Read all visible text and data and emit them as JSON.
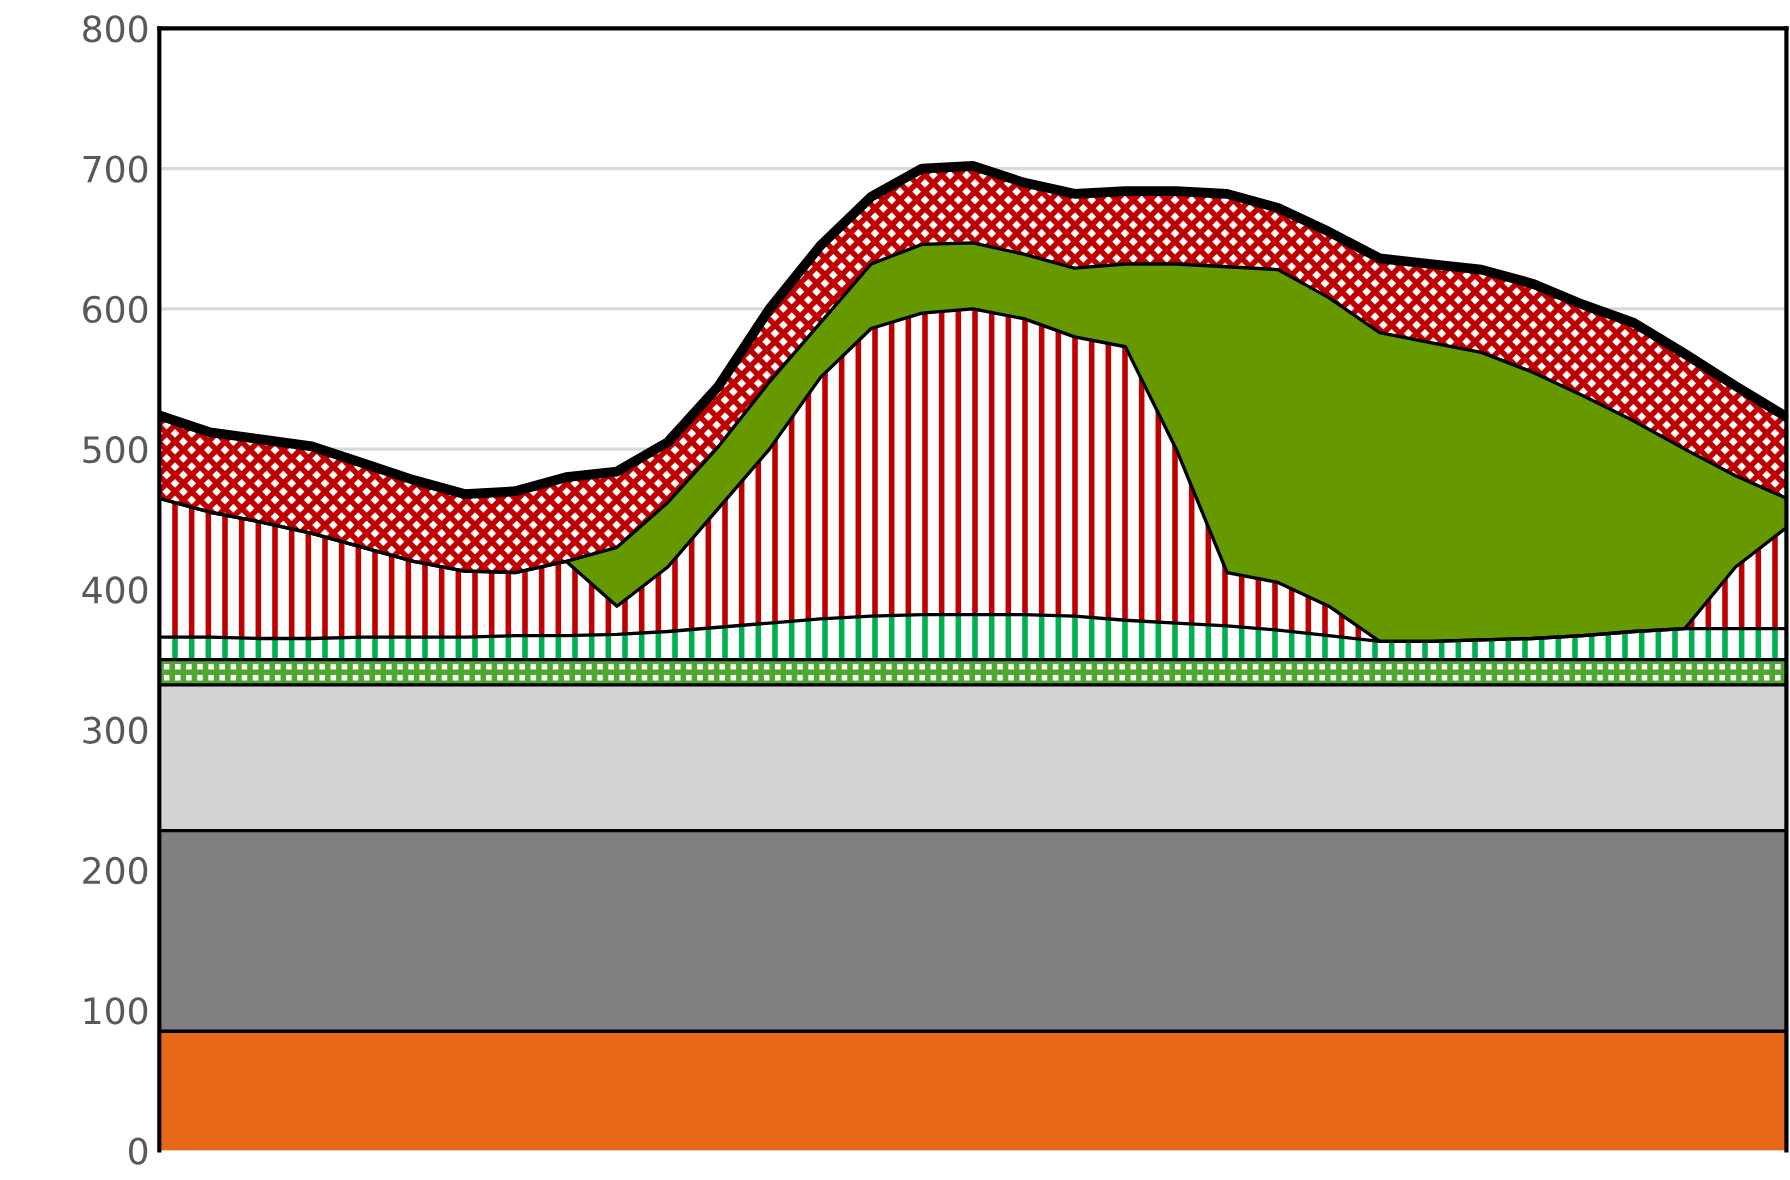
{
  "chart_data": {
    "type": "area",
    "stacked": true,
    "categories": [
      null,
      null,
      null,
      null,
      null,
      null,
      null,
      null,
      null,
      null,
      null,
      null,
      null,
      null,
      null,
      null,
      null,
      null,
      null,
      null,
      null,
      null,
      null,
      null,
      null,
      null,
      null,
      null,
      null,
      null,
      null,
      null,
      null
    ],
    "series": [
      {
        "color": "#e8681a",
        "values": [
          85,
          85,
          85,
          85,
          85,
          85,
          85,
          85,
          85,
          85,
          85,
          85,
          85,
          85,
          85,
          85,
          85,
          85,
          85,
          85,
          85,
          85,
          85,
          85,
          85,
          85,
          85,
          85,
          85,
          85,
          85,
          85,
          85
        ]
      },
      {
        "color": "#808080",
        "values": [
          143,
          143,
          143,
          143,
          143,
          143,
          143,
          143,
          143,
          143,
          143,
          143,
          143,
          143,
          143,
          143,
          143,
          143,
          143,
          143,
          143,
          143,
          143,
          143,
          143,
          143,
          143,
          143,
          143,
          143,
          143,
          143,
          143
        ]
      },
      {
        "color": "#d3d3d3",
        "values": [
          104,
          104,
          104,
          104,
          104,
          104,
          104,
          104,
          104,
          104,
          104,
          104,
          104,
          104,
          104,
          104,
          104,
          104,
          104,
          104,
          104,
          104,
          104,
          104,
          104,
          104,
          104,
          104,
          104,
          104,
          104,
          104,
          104
        ]
      },
      {
        "color": "#4ea72e",
        "values": [
          18,
          18,
          18,
          18,
          18,
          18,
          18,
          18,
          18,
          18,
          18,
          18,
          18,
          18,
          18,
          18,
          18,
          18,
          18,
          18,
          18,
          18,
          18,
          18,
          18,
          18,
          18,
          18,
          18,
          18,
          18,
          18,
          18
        ]
      },
      {
        "color": "#00b050",
        "values": [
          16,
          16,
          15,
          15,
          16,
          16,
          16,
          17,
          17,
          18,
          20,
          23,
          26,
          29,
          31,
          32,
          32,
          32,
          31,
          28,
          26,
          24,
          21,
          17,
          13,
          13,
          14,
          15,
          17,
          20,
          22,
          22,
          22
        ]
      },
      {
        "color": "#c00000",
        "values": [
          99,
          89,
          83,
          75,
          64,
          54,
          47,
          45,
          53,
          20,
          46,
          85,
          124,
          172,
          205,
          215,
          218,
          211,
          199,
          195,
          124,
          38,
          34,
          21,
          0,
          0,
          0,
          0,
          0,
          0,
          0,
          44,
          72
        ]
      },
      {
        "color": "#669900",
        "values": [
          0,
          0,
          0,
          0,
          0,
          0,
          0,
          0,
          0,
          42,
          46,
          44,
          48,
          39,
          46,
          49,
          47,
          46,
          49,
          59,
          132,
          218,
          223,
          220,
          220,
          213,
          205,
          190,
          171,
          150,
          128,
          65,
          21
        ]
      },
      {
        "color": "#c00000",
        "values": [
          59,
          57,
          59,
          62,
          60,
          58,
          55,
          58,
          60,
          54,
          43,
          43,
          52,
          55,
          48,
          54,
          55,
          51,
          53,
          52,
          52,
          52,
          44,
          47,
          53,
          56,
          59,
          63,
          65,
          70,
          68,
          64,
          58
        ]
      }
    ],
    "ylim": [
      0,
      800
    ],
    "yticks": [
      0,
      100,
      200,
      300,
      400,
      500,
      600,
      700,
      800
    ],
    "grid": "y"
  }
}
